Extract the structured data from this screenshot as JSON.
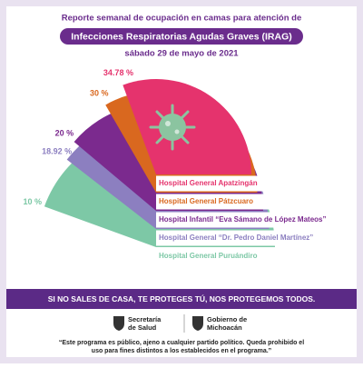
{
  "header": {
    "title": "Reporte semanal de ocupación en camas para atención de",
    "highlight": "Infecciones Respiratorias Agudas Graves (IRAG)",
    "date": "sábado 29 de mayo de 2021"
  },
  "chart_data": {
    "type": "radial-bar",
    "categories": [
      "Hospital General Apatzingán",
      "Hospital General Pátzcuaro",
      "Hospital Infantil “Eva Sámano de López Mateos”",
      "Hospital General “Dr. Pedro Daniel Martínez”",
      "Hospital General Puruándiro"
    ],
    "values": [
      34.78,
      30,
      20,
      18.92,
      10
    ],
    "value_labels": [
      "34.78 %",
      "30 %",
      "20 %",
      "18.92 %",
      "10 %"
    ],
    "colors": [
      "#e5336d",
      "#d9681f",
      "#7b2a8e",
      "#8c7fc0",
      "#7dc8a6"
    ]
  },
  "footer": {
    "banner": "SI NO SALES DE CASA, TE PROTEGES TÚ, NOS PROTEGEMOS TODOS.",
    "logo1": [
      "Secretaría",
      "de Salud"
    ],
    "logo2": [
      "Gobierno de",
      "Michoacán"
    ],
    "disclaimer": [
      "“Este programa es público, ajeno a cualquier partido político. Queda prohibido el",
      "uso para fines distintos a los establecidos en el programa.”"
    ]
  }
}
